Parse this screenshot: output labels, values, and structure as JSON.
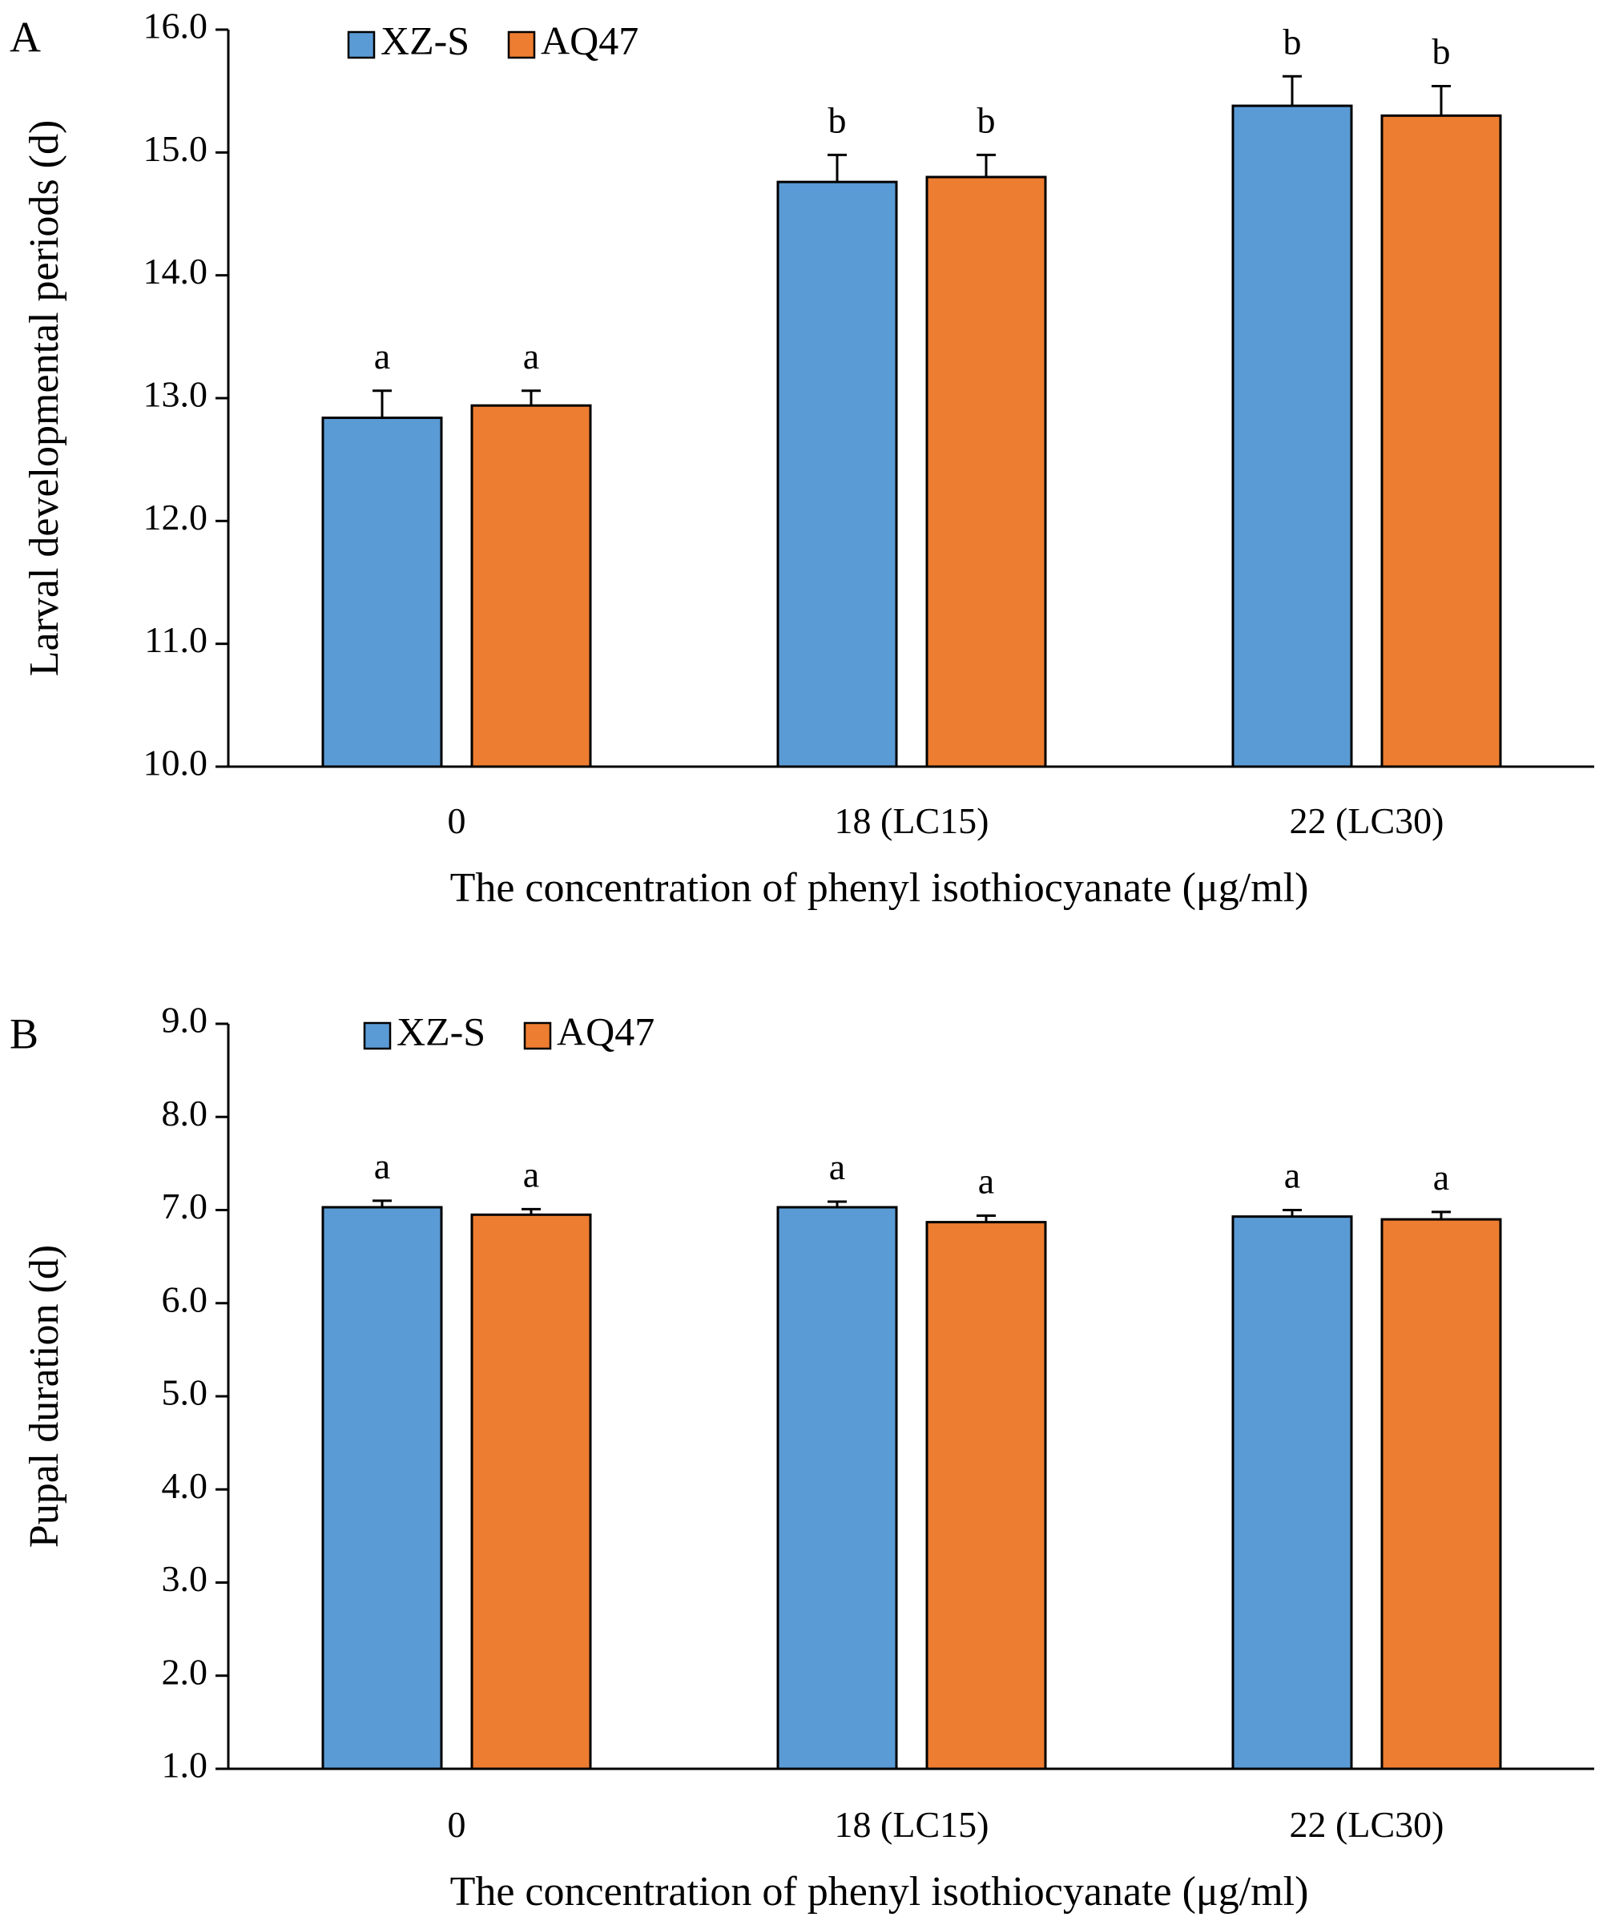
{
  "colors": {
    "XZ-S": "#5b9bd5",
    "AQ47": "#ed7d31"
  },
  "chart_data": [
    {
      "type": "bar",
      "panel_label": "A",
      "categories": [
        "0",
        "18 (LC15)",
        "22 (LC30)"
      ],
      "xlabel": "The concentration of phenyl isothiocyanate (μg/ml)",
      "ylabel": "Larval developmental periods (d)",
      "ylim": [
        10.0,
        16.0
      ],
      "yticks": [
        "10.0",
        "11.0",
        "12.0",
        "13.0",
        "14.0",
        "15.0",
        "16.0"
      ],
      "legend": [
        "XZ-S",
        "AQ47"
      ],
      "legend_position": "top-left",
      "grid": false,
      "series": [
        {
          "name": "XZ-S",
          "values": [
            12.84,
            14.76,
            15.38
          ],
          "errors": [
            0.22,
            0.22,
            0.24
          ],
          "labels": [
            "a",
            "b",
            "b"
          ]
        },
        {
          "name": "AQ47",
          "values": [
            12.94,
            14.8,
            15.3
          ],
          "errors": [
            0.12,
            0.18,
            0.24
          ],
          "labels": [
            "a",
            "b",
            "b"
          ]
        }
      ]
    },
    {
      "type": "bar",
      "panel_label": "B",
      "categories": [
        "0",
        "18 (LC15)",
        "22 (LC30)"
      ],
      "xlabel": "The concentration of phenyl isothiocyanate (μg/ml)",
      "ylabel": "Pupal duration (d)",
      "ylim": [
        1.0,
        9.0
      ],
      "yticks": [
        "1.0",
        "2.0",
        "3.0",
        "4.0",
        "5.0",
        "6.0",
        "7.0",
        "8.0",
        "9.0"
      ],
      "legend": [
        "XZ-S",
        "AQ47"
      ],
      "legend_position": "top-left",
      "grid": false,
      "series": [
        {
          "name": "XZ-S",
          "values": [
            7.03,
            7.03,
            6.93
          ],
          "errors": [
            0.07,
            0.06,
            0.07
          ],
          "labels": [
            "a",
            "a",
            "a"
          ]
        },
        {
          "name": "AQ47",
          "values": [
            6.95,
            6.87,
            6.9
          ],
          "errors": [
            0.06,
            0.07,
            0.08
          ],
          "labels": [
            "a",
            "a",
            "a"
          ]
        }
      ]
    }
  ]
}
